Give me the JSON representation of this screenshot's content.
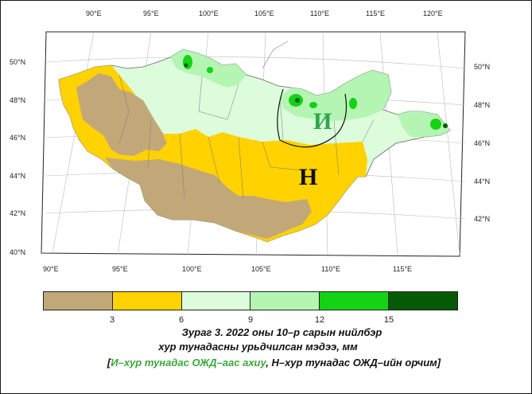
{
  "map": {
    "lon_ticks_top": [
      "90°E",
      "95°E",
      "100°E",
      "105°E",
      "110°E",
      "115°E",
      "120°E"
    ],
    "lon_ticks_bottom": [
      "90°E",
      "95°E",
      "100°E",
      "105°E",
      "110°E",
      "115°E"
    ],
    "lat_ticks_left": [
      "50°N",
      "48°N",
      "46°N",
      "44°N",
      "42°N",
      "40°N"
    ],
    "lat_ticks_right": [
      "50°N",
      "48°N",
      "46°N",
      "44°N",
      "42°N"
    ],
    "region_label_wet": "И",
    "region_label_normal": "Н",
    "colors": {
      "below3": "#c2a878",
      "c3_6": "#ffd200",
      "c6_9": "#dcfcdc",
      "c9_12": "#b4f5b4",
      "c12_15": "#14d214",
      "c15up": "#055a05",
      "wet_label": "#2ea64a",
      "outside": "#ffffff"
    }
  },
  "legend": {
    "colors": [
      "#c2a878",
      "#ffd200",
      "#dcfcdc",
      "#b4f5b4",
      "#14d214",
      "#055a05"
    ],
    "labels": [
      "3",
      "6",
      "9",
      "12",
      "15"
    ]
  },
  "caption": {
    "line1": "Зураг 3. 2022 оны 10–р сарын нийлбэр",
    "line2": "хур тунадасны урьдчилсан мэдээ, мм",
    "line3_open": "[",
    "line3_green": "И–хур тунадас ОЖД–аас ахиу",
    "line3_rest": ", Н–хур тунадас ОЖД–ийн орчим]"
  }
}
